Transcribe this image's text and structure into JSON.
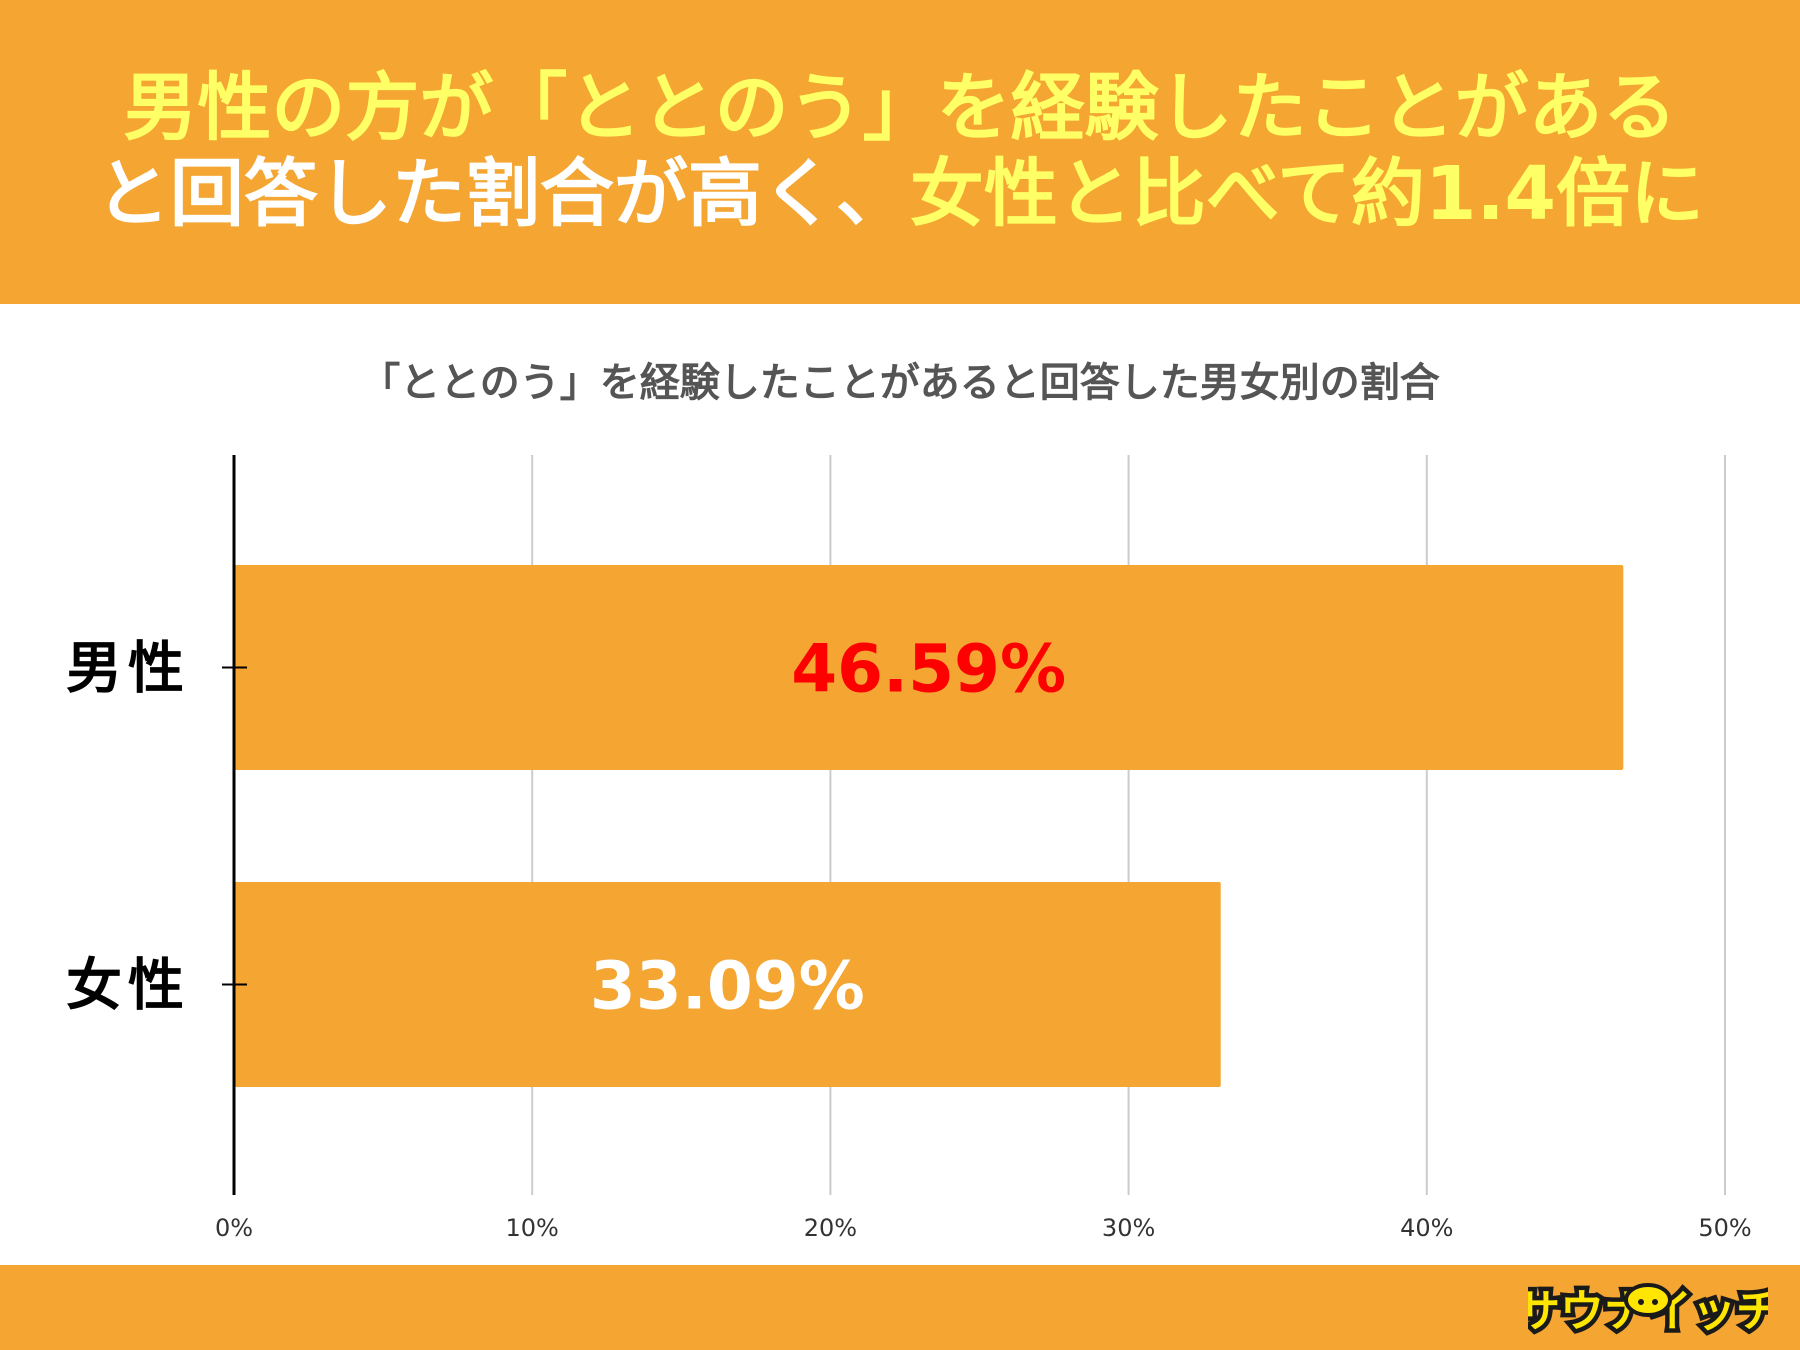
{
  "header": {
    "line1": [
      {
        "text": "男性の方が「ととのう」を経験したことがある",
        "color": "#ffff66"
      }
    ],
    "line2": [
      {
        "text": "と回答した割合が高く、",
        "color": "#ffffff"
      },
      {
        "text": "女性と比べて約1.4倍に",
        "color": "#ffff66"
      }
    ],
    "background": "#f4a532"
  },
  "chart_data": {
    "type": "bar",
    "orientation": "horizontal",
    "title": "「ととのう」を経験したことがあると回答した男女別の割合",
    "categories": [
      "男性",
      "女性"
    ],
    "values": [
      46.59,
      33.09
    ],
    "value_labels": [
      "46.59%",
      "33.09%"
    ],
    "value_label_colors": [
      "#ff0000",
      "#ffffff"
    ],
    "bar_color": "#f4a532",
    "xlim": [
      0,
      50
    ],
    "x_ticks": [
      0,
      10,
      20,
      30,
      40,
      50
    ],
    "x_tick_labels": [
      "0%",
      "10%",
      "20%",
      "30%",
      "40%",
      "50%"
    ],
    "grid": true,
    "xlabel": "",
    "ylabel": ""
  },
  "footer": {
    "logo_icon": "sauna-mascot-logo-icon",
    "logo_text": "サウナイッチ",
    "background": "#f4a532"
  }
}
